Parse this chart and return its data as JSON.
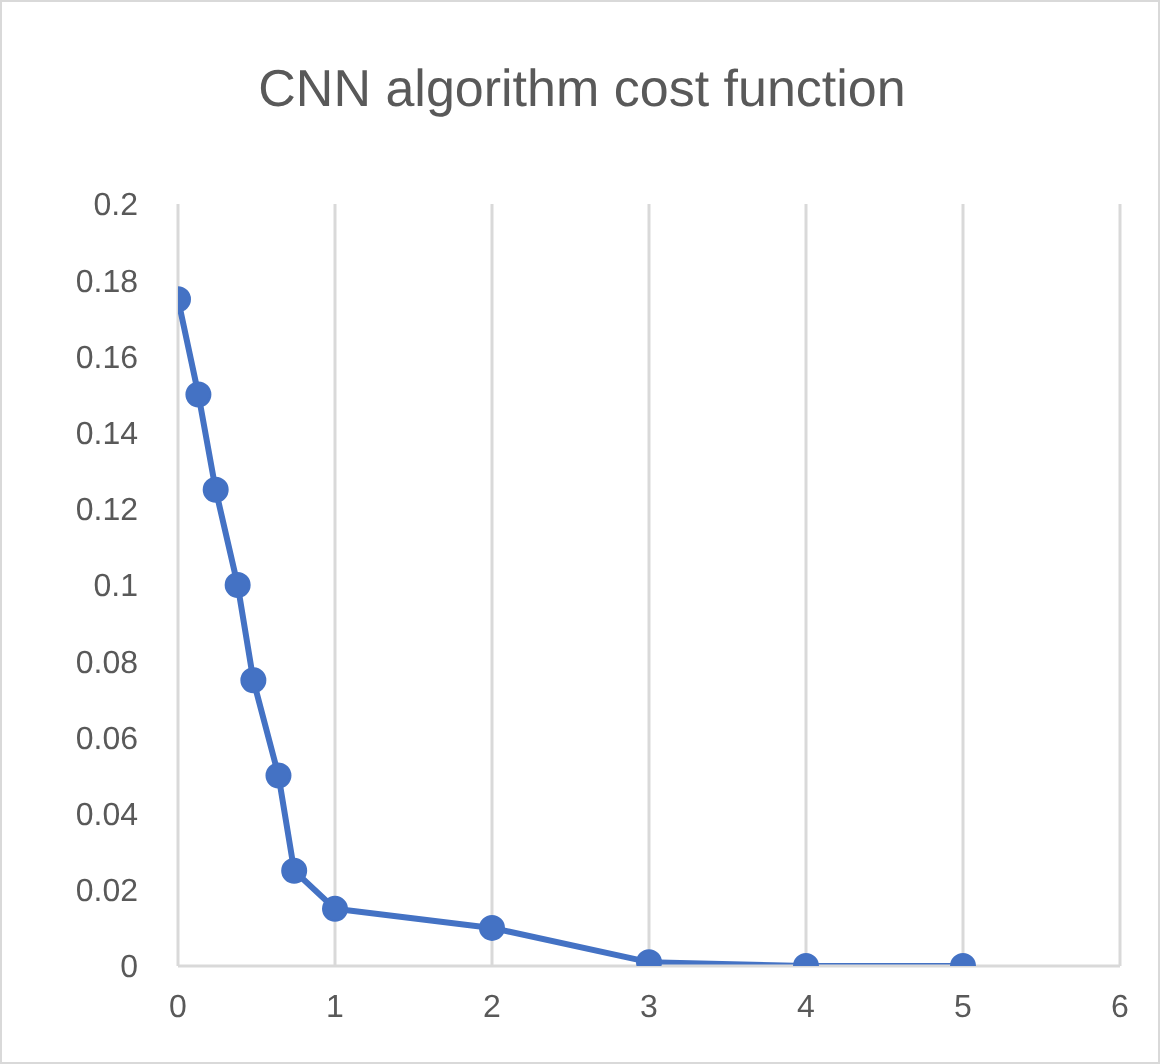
{
  "chart_data": {
    "type": "line",
    "title": "CNN algorithm cost function",
    "x": [
      0,
      0.13,
      0.24,
      0.38,
      0.48,
      0.64,
      0.74,
      1,
      2,
      3,
      4,
      5
    ],
    "series": [
      {
        "color": "#4472c4",
        "values": [
          0.175,
          0.15,
          0.125,
          0.1,
          0.075,
          0.05,
          0.025,
          0.015,
          0.01,
          0.001,
          0,
          0
        ]
      }
    ],
    "xlim": [
      0,
      6
    ],
    "xticks": [
      0,
      1,
      2,
      3,
      4,
      5,
      6
    ],
    "ylim": [
      0,
      0.2
    ],
    "yticks": [
      0,
      0.02,
      0.04,
      0.06,
      0.08,
      0.1,
      0.12,
      0.14,
      0.16,
      0.18,
      0.2
    ],
    "grid": "x",
    "legend": false,
    "marker": "circle",
    "line_style": "solid"
  }
}
